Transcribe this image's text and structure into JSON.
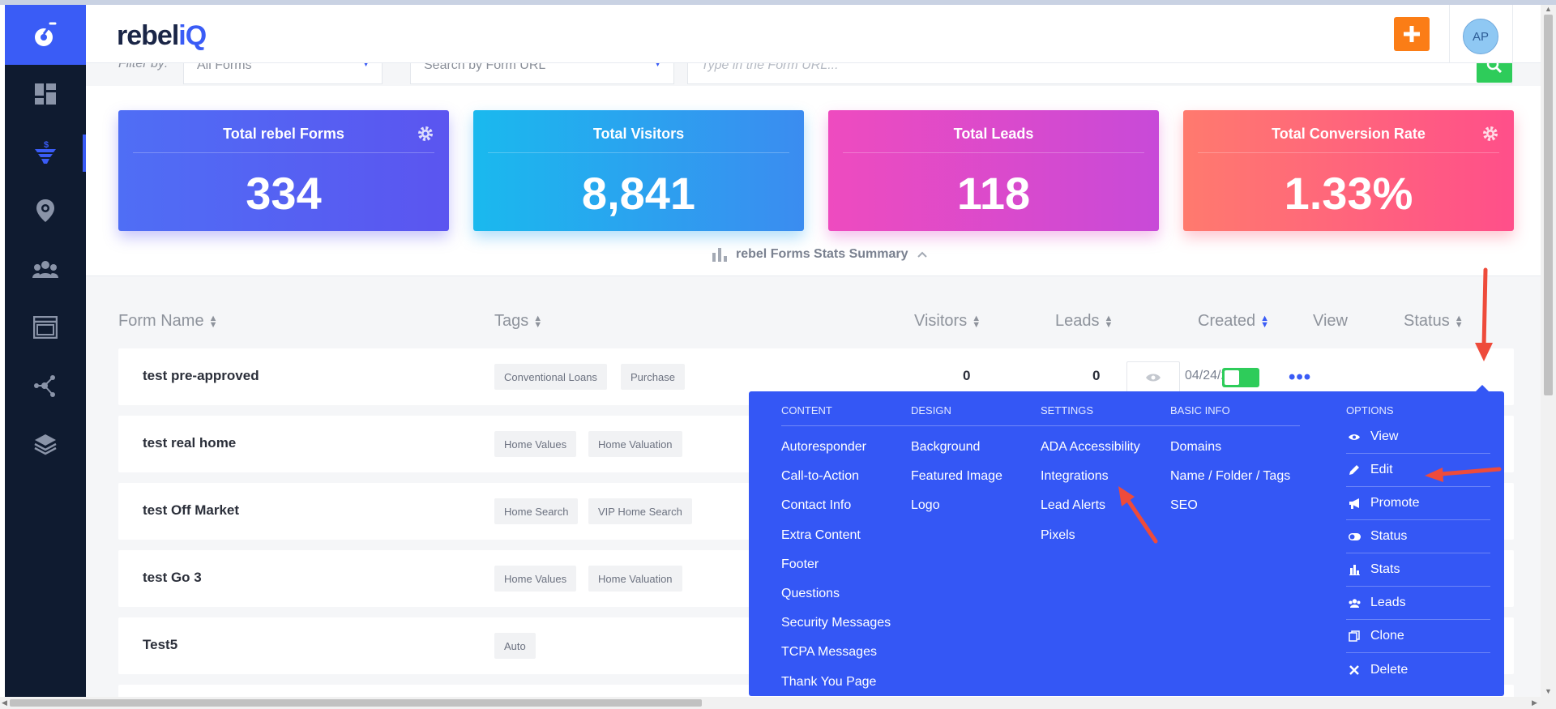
{
  "header": {
    "brand_main": "rebel",
    "brand_accent": "iQ",
    "add_label": "+",
    "avatar_initials": "AP"
  },
  "sidebar": {
    "items": [
      "dashboard-icon",
      "funnel-dollar-icon",
      "location-pin-icon",
      "users-icon",
      "browser-window-icon",
      "network-icon",
      "layers-icon"
    ]
  },
  "filter": {
    "label": "Filter by:",
    "form_select": "All Forms",
    "url_select": "Search by Form URL",
    "url_placeholder": "Type in the Form URL..."
  },
  "stats": {
    "cards": [
      {
        "title": "Total rebel Forms",
        "value": "334"
      },
      {
        "title": "Total Visitors",
        "value": "8,841"
      },
      {
        "title": "Total Leads",
        "value": "118"
      },
      {
        "title": "Total Conversion Rate",
        "value": "1.33%"
      }
    ],
    "summary_label": "rebel Forms Stats Summary"
  },
  "table": {
    "headers": {
      "name": "Form Name",
      "tags": "Tags",
      "visitors": "Visitors",
      "leads": "Leads",
      "created": "Created",
      "view": "View",
      "status": "Status"
    },
    "rows": [
      {
        "name": "test pre-approved",
        "tags": [
          "Conventional Loans",
          "Purchase"
        ],
        "visitors": "0",
        "leads": "0",
        "created": "04/24/2023"
      },
      {
        "name": "test real home",
        "tags": [
          "Home Values",
          "Home Valuation"
        ]
      },
      {
        "name": "test Off Market",
        "tags": [
          "Home Search",
          "VIP Home Search"
        ]
      },
      {
        "name": "test Go 3",
        "tags": [
          "Home Values",
          "Home Valuation"
        ]
      },
      {
        "name": "Test5",
        "tags": [
          "Auto"
        ]
      }
    ],
    "more_label": "•••"
  },
  "menu": {
    "content": {
      "head": "CONTENT",
      "links": [
        "Autoresponder",
        "Call-to-Action",
        "Contact Info",
        "Extra Content",
        "Footer",
        "Questions",
        "Security Messages",
        "TCPA Messages",
        "Thank You Page"
      ]
    },
    "design": {
      "head": "DESIGN",
      "links": [
        "Background",
        "Featured Image",
        "Logo"
      ]
    },
    "settings": {
      "head": "SETTINGS",
      "links": [
        "ADA Accessibility",
        "Integrations",
        "Lead Alerts",
        "Pixels"
      ]
    },
    "basic": {
      "head": "BASIC INFO",
      "links": [
        "Domains",
        "Name / Folder / Tags",
        "SEO"
      ]
    },
    "options": {
      "head": "OPTIONS",
      "items": [
        "View",
        "Edit",
        "Promote",
        "Status",
        "Stats",
        "Leads",
        "Clone",
        "Delete"
      ]
    }
  },
  "colors": {
    "accent": "#3a5cf6",
    "orange": "#fb7d16",
    "green": "#2ecc5a",
    "sidebar": "#0f1b30",
    "annotation": "#ee4b3b"
  }
}
